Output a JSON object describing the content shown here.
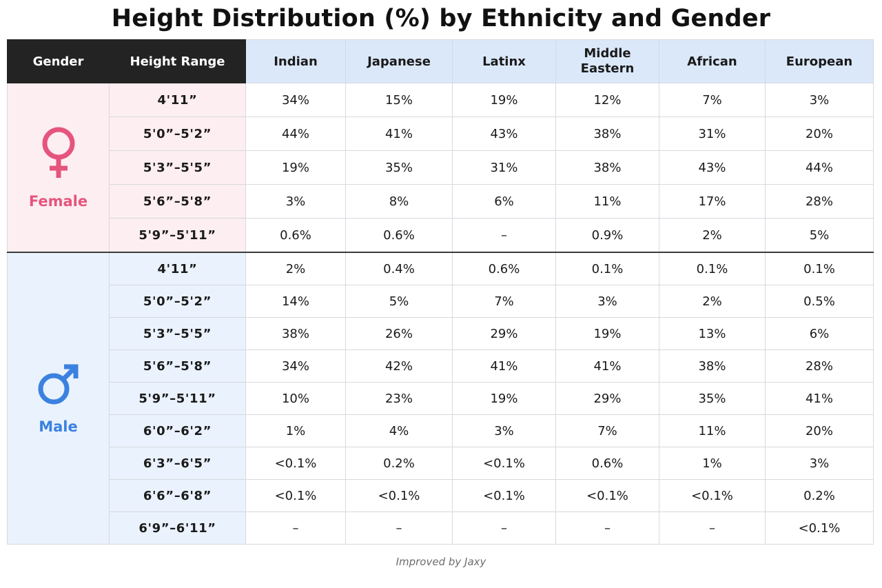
{
  "chart_data": {
    "type": "table",
    "title": "Height Distribution (%) by Ethnicity and Gender",
    "header": {
      "gender": "Gender",
      "range": "Height Range",
      "ethnicities": [
        "Indian",
        "Japanese",
        "Latinx",
        "Middle Eastern",
        "African",
        "European"
      ]
    },
    "groups": [
      {
        "label": "Female",
        "icon": "female-symbol-icon",
        "color": "#e5557e",
        "background": "#fdeef1",
        "rows": [
          {
            "range": "4'11”",
            "values": [
              "34%",
              "15%",
              "19%",
              "12%",
              "7%",
              "3%"
            ]
          },
          {
            "range": "5'0”–5'2”",
            "values": [
              "44%",
              "41%",
              "43%",
              "38%",
              "31%",
              "20%"
            ]
          },
          {
            "range": "5'3”–5'5”",
            "values": [
              "19%",
              "35%",
              "31%",
              "38%",
              "43%",
              "44%"
            ]
          },
          {
            "range": "5'6”–5'8”",
            "values": [
              "3%",
              "8%",
              "6%",
              "11%",
              "17%",
              "28%"
            ]
          },
          {
            "range": "5'9”–5'11”",
            "values": [
              "0.6%",
              "0.6%",
              "–",
              "0.9%",
              "2%",
              "5%"
            ]
          }
        ]
      },
      {
        "label": "Male",
        "icon": "male-symbol-icon",
        "color": "#3b82e0",
        "background": "#eaf2fd",
        "rows": [
          {
            "range": "4'11”",
            "values": [
              "2%",
              "0.4%",
              "0.6%",
              "0.1%",
              "0.1%",
              "0.1%"
            ]
          },
          {
            "range": "5'0”–5'2”",
            "values": [
              "14%",
              "5%",
              "7%",
              "3%",
              "2%",
              "0.5%"
            ]
          },
          {
            "range": "5'3”–5'5”",
            "values": [
              "38%",
              "26%",
              "29%",
              "19%",
              "13%",
              "6%"
            ]
          },
          {
            "range": "5'6”–5'8”",
            "values": [
              "34%",
              "42%",
              "41%",
              "41%",
              "38%",
              "28%"
            ]
          },
          {
            "range": "5'9”–5'11”",
            "values": [
              "10%",
              "23%",
              "19%",
              "29%",
              "35%",
              "41%"
            ]
          },
          {
            "range": "6'0”–6'2”",
            "values": [
              "1%",
              "4%",
              "3%",
              "7%",
              "11%",
              "20%"
            ]
          },
          {
            "range": "6'3”–6'5”",
            "values": [
              "<0.1%",
              "0.2%",
              "<0.1%",
              "0.6%",
              "1%",
              "3%"
            ]
          },
          {
            "range": "6'6”–6'8”",
            "values": [
              "<0.1%",
              "<0.1%",
              "<0.1%",
              "<0.1%",
              "<0.1%",
              "0.2%"
            ]
          },
          {
            "range": "6'9”–6'11”",
            "values": [
              "–",
              "–",
              "–",
              "–",
              "–",
              "<0.1%"
            ]
          }
        ]
      }
    ],
    "footer": "Improved by Jaxy",
    "colors": {
      "header_dark": "#232323",
      "header_light": "#dbe8fa",
      "female_accent": "#e5557e",
      "male_accent": "#3b82e0"
    }
  }
}
